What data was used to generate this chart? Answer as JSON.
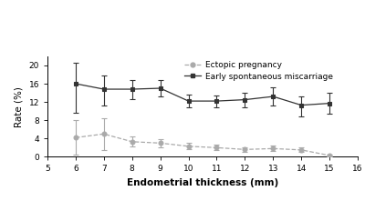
{
  "x": [
    6,
    7,
    8,
    9,
    10,
    11,
    12,
    13,
    14,
    15
  ],
  "ectopic_y": [
    4.2,
    5.0,
    3.3,
    3.0,
    2.3,
    2.0,
    1.6,
    1.8,
    1.5,
    0.3
  ],
  "ectopic_yerr_lo": [
    3.8,
    3.5,
    1.1,
    0.9,
    0.7,
    0.6,
    0.5,
    0.6,
    0.5,
    0.2
  ],
  "ectopic_yerr_hi": [
    3.8,
    3.5,
    1.1,
    0.9,
    0.7,
    0.6,
    0.5,
    0.6,
    0.5,
    0.2
  ],
  "miscarriage_y": [
    16.0,
    14.8,
    14.8,
    15.0,
    12.2,
    12.2,
    12.5,
    13.2,
    11.3,
    11.7
  ],
  "miscarriage_yerr_lo": [
    6.3,
    3.5,
    2.2,
    1.8,
    1.4,
    1.3,
    1.6,
    2.0,
    2.5,
    2.3
  ],
  "miscarriage_yerr_hi": [
    4.5,
    3.0,
    2.0,
    1.8,
    1.4,
    1.3,
    1.6,
    2.0,
    2.0,
    2.3
  ],
  "ectopic_color": "#aaaaaa",
  "miscarriage_color": "#333333",
  "xlabel": "Endometrial thickness (mm)",
  "ylabel": "Rate (%)",
  "xlim": [
    5,
    16
  ],
  "ylim": [
    0,
    22
  ],
  "yticks": [
    0.0,
    4.0,
    8.0,
    12.0,
    16.0,
    20.0
  ],
  "xticks": [
    5,
    6,
    7,
    8,
    9,
    10,
    11,
    12,
    13,
    14,
    15,
    16
  ],
  "legend_ectopic": "Ectopic pregnancy",
  "legend_miscarriage": "Early spontaneous miscarriage",
  "background_color": "#ffffff"
}
